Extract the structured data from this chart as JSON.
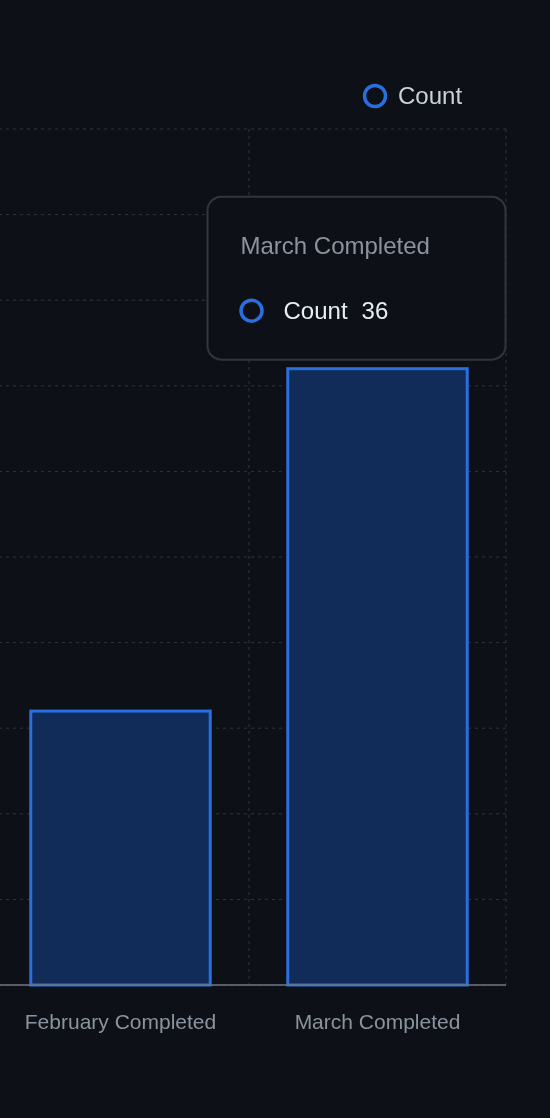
{
  "chart_data": {
    "type": "bar",
    "categories": [
      "February Completed",
      "March Completed"
    ],
    "series": [
      {
        "name": "Count",
        "color": "#2a6fe0",
        "values": [
          16,
          36
        ],
        "value_labels": [
          null,
          "36"
        ]
      }
    ],
    "ylim": [
      0,
      50
    ],
    "yticks": [
      {
        "value": 0,
        "label": null
      },
      {
        "value": 5,
        "label": null
      },
      {
        "value": 10,
        "label": null
      },
      {
        "value": 15,
        "label": null
      },
      {
        "value": 20,
        "label": null
      },
      {
        "value": 25,
        "label": null
      },
      {
        "value": 30,
        "label": null
      },
      {
        "value": 35,
        "label": null
      },
      {
        "value": 40,
        "label": null
      },
      {
        "value": 45,
        "label": null
      },
      {
        "value": 50,
        "label": null
      }
    ],
    "tick_labels": "x",
    "grid": true,
    "legend": "top right"
  }
}
